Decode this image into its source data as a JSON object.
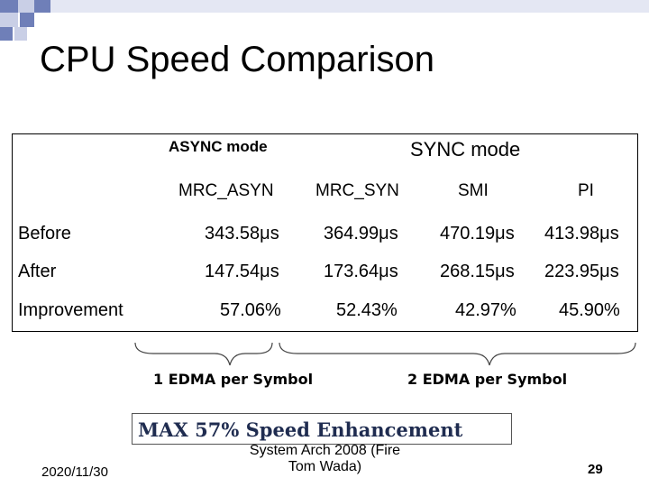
{
  "slide": {
    "title": "CPU Speed Comparison",
    "accent_color": "#6f7fb8",
    "table": {
      "group_async": "ASYNC mode",
      "group_sync": "SYNC mode",
      "columns": [
        "MRC_ASYN",
        "MRC_SYN",
        "SMI",
        "PI"
      ],
      "rows": [
        {
          "label": "Before",
          "values": [
            "343.58μs",
            "364.99μs",
            "470.19μs",
            "413.98μs"
          ]
        },
        {
          "label": "After",
          "values": [
            "147.54μs",
            "173.64μs",
            "268.15μs",
            "223.95μs"
          ]
        },
        {
          "label": "Improvement",
          "values": [
            "57.06%",
            "52.43%",
            "42.97%",
            "45.90%"
          ]
        }
      ]
    },
    "brace_left_label": "1 EDMA per Symbol",
    "brace_right_label": "2 EDMA per Symbol",
    "highlight": "MAX 57% Speed Enhancement",
    "footer": {
      "date": "2020/11/30",
      "title_line1": "System Arch 2008  (Fire",
      "title_line2": "Tom Wada)",
      "page": "29"
    }
  }
}
